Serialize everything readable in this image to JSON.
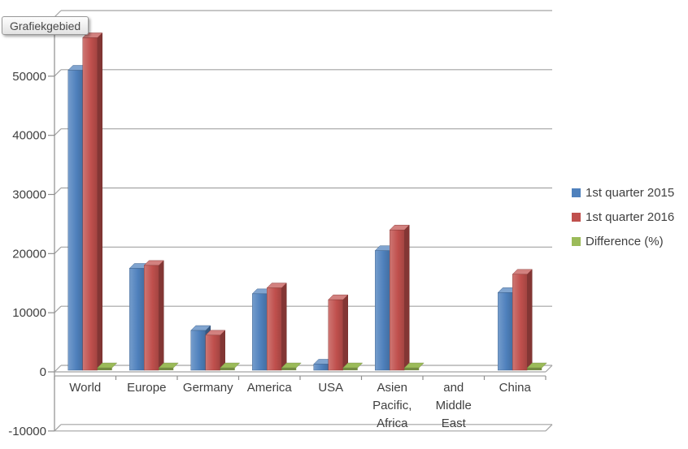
{
  "window": {
    "background": "#FFFFFF"
  },
  "tooltip": {
    "label": "Grafiekgebied"
  },
  "legend": {
    "position": "right",
    "items": [
      {
        "label": "1st quarter 2015",
        "color": "#4F81BD"
      },
      {
        "label": "1st quarter 2016",
        "color": "#C0504D"
      },
      {
        "label": "Difference (%)",
        "color": "#9BBB59"
      }
    ]
  },
  "chart_data": {
    "type": "bar",
    "style": "3d-clustered-column",
    "title": "",
    "xlabel": "",
    "ylabel": "",
    "grid": true,
    "legend_position": "right",
    "ylim": [
      -10000,
      60000
    ],
    "ytick_step": 10000,
    "ytick_labels": [
      "-10000",
      "0",
      "10000",
      "20000",
      "30000",
      "40000",
      "50000"
    ],
    "ytick_values": [
      -10000,
      0,
      10000,
      20000,
      30000,
      40000,
      50000
    ],
    "categories": [
      "World",
      "Europe",
      "Germany",
      "America",
      "USA",
      "Asien Pacific, Africa",
      "and Middle East",
      "China"
    ],
    "series": [
      {
        "name": "1st quarter 2015",
        "color": "#4F81BD",
        "values": [
          51000,
          17500,
          7000,
          13200,
          1300,
          20500,
          null,
          13400
        ]
      },
      {
        "name": "1st quarter 2016",
        "color": "#C0504D",
        "values": [
          56500,
          18000,
          6200,
          14200,
          12200,
          24000,
          null,
          16500
        ]
      },
      {
        "name": "Difference (%)",
        "color": "#9BBB59",
        "values": [
          0,
          0,
          0,
          0,
          0,
          0,
          null,
          0
        ]
      }
    ],
    "colors": {
      "gridline": "#A3A3A3",
      "axis": "#8E8E8E",
      "text": "#3F3F3F"
    }
  }
}
